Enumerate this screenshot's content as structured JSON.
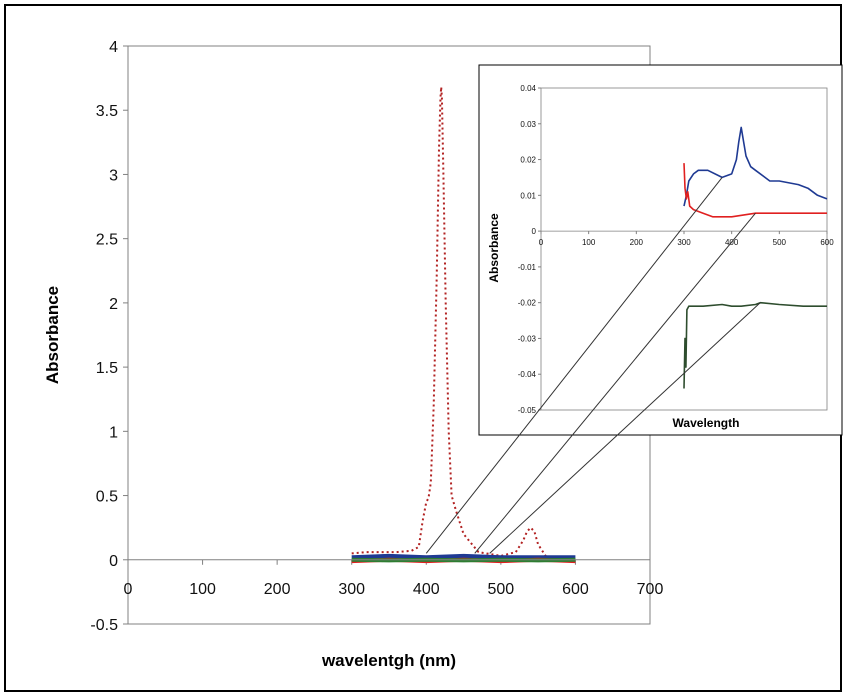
{
  "chart_data": [
    {
      "type": "line",
      "xlabel": "wavelentgh (nm)",
      "ylabel": "Absorbance",
      "xlim": [
        0,
        700
      ],
      "ylim": [
        -0.5,
        4
      ],
      "x_ticks": [
        0,
        100,
        200,
        300,
        400,
        500,
        600,
        700
      ],
      "y_ticks": [
        -0.5,
        0,
        0.5,
        1,
        1.5,
        2,
        2.5,
        3,
        3.5,
        4
      ],
      "series": [
        {
          "color": "#b22222",
          "style": "dotted",
          "x": [
            300,
            320,
            340,
            360,
            380,
            390,
            395,
            400,
            403,
            406,
            410,
            414,
            417,
            419,
            420,
            421,
            423,
            426,
            430,
            434,
            440,
            450,
            470,
            500,
            520,
            530,
            535,
            540,
            545,
            550,
            560,
            580,
            600
          ],
          "y": [
            0.05,
            0.06,
            0.06,
            0.06,
            0.07,
            0.1,
            0.3,
            0.45,
            0.48,
            0.6,
            1.2,
            2.2,
            3.2,
            3.6,
            3.68,
            3.6,
            3.0,
            2.0,
            1.0,
            0.5,
            0.38,
            0.2,
            0.06,
            0.03,
            0.06,
            0.15,
            0.22,
            0.25,
            0.22,
            0.12,
            0.03,
            0.01,
            0.0
          ]
        },
        {
          "color": "#1f3a93",
          "style": "solid",
          "x": [
            300,
            350,
            400,
            450,
            500,
            550,
            600
          ],
          "y": [
            0.02,
            0.03,
            0.02,
            0.03,
            0.02,
            0.02,
            0.02
          ]
        },
        {
          "color": "#e02020",
          "style": "solid",
          "x": [
            300,
            350,
            400,
            450,
            500,
            550,
            600
          ],
          "y": [
            -0.01,
            0.0,
            -0.01,
            0.0,
            -0.01,
            0.0,
            -0.01
          ]
        },
        {
          "color": "#2e7d32",
          "style": "solid",
          "x": [
            300,
            350,
            400,
            450,
            500,
            550,
            600
          ],
          "y": [
            0.0,
            -0.005,
            0.0,
            -0.005,
            0.0,
            -0.005,
            0.0
          ]
        }
      ]
    },
    {
      "type": "line",
      "xlabel": "Wavelength",
      "ylabel": "Absorbance",
      "xlim": [
        0,
        600
      ],
      "ylim": [
        -0.05,
        0.04
      ],
      "x_ticks": [
        0,
        100,
        200,
        300,
        400,
        500,
        600
      ],
      "y_ticks": [
        "-0.05",
        "-0.04",
        "-0.03",
        "-0.02",
        "-0.01",
        "0",
        "0.01",
        "0.02",
        "0.03",
        "0.04"
      ],
      "series": [
        {
          "color": "#1f3a93",
          "style": "solid",
          "x": [
            300,
            305,
            310,
            320,
            330,
            350,
            380,
            400,
            410,
            415,
            420,
            425,
            430,
            440,
            450,
            480,
            500,
            540,
            560,
            580,
            600
          ],
          "y": [
            0.007,
            0.01,
            0.014,
            0.016,
            0.017,
            0.017,
            0.015,
            0.016,
            0.02,
            0.025,
            0.029,
            0.025,
            0.021,
            0.018,
            0.017,
            0.014,
            0.014,
            0.013,
            0.012,
            0.01,
            0.009
          ]
        },
        {
          "color": "#e02020",
          "style": "solid",
          "x": [
            300,
            302,
            305,
            308,
            312,
            320,
            340,
            360,
            400,
            450,
            500,
            550,
            600
          ],
          "y": [
            0.019,
            0.012,
            0.009,
            0.011,
            0.007,
            0.006,
            0.005,
            0.004,
            0.004,
            0.005,
            0.005,
            0.005,
            0.005
          ]
        },
        {
          "color": "#2e4d2e",
          "style": "solid",
          "x": [
            300,
            302,
            304,
            306,
            310,
            320,
            340,
            380,
            400,
            420,
            450,
            460,
            500,
            550,
            600
          ],
          "y": [
            -0.044,
            -0.03,
            -0.038,
            -0.022,
            -0.021,
            -0.021,
            -0.021,
            -0.0205,
            -0.021,
            -0.021,
            -0.0205,
            -0.02,
            -0.0205,
            -0.021,
            -0.021
          ]
        }
      ],
      "connectors": [
        {
          "main": [
            400,
            0.05
          ],
          "inset": [
            380,
            0.015
          ]
        },
        {
          "main": [
            465,
            0.05
          ],
          "inset": [
            450,
            0.005
          ]
        },
        {
          "main": [
            485,
            0.05
          ],
          "inset": [
            460,
            -0.02
          ]
        }
      ]
    }
  ]
}
